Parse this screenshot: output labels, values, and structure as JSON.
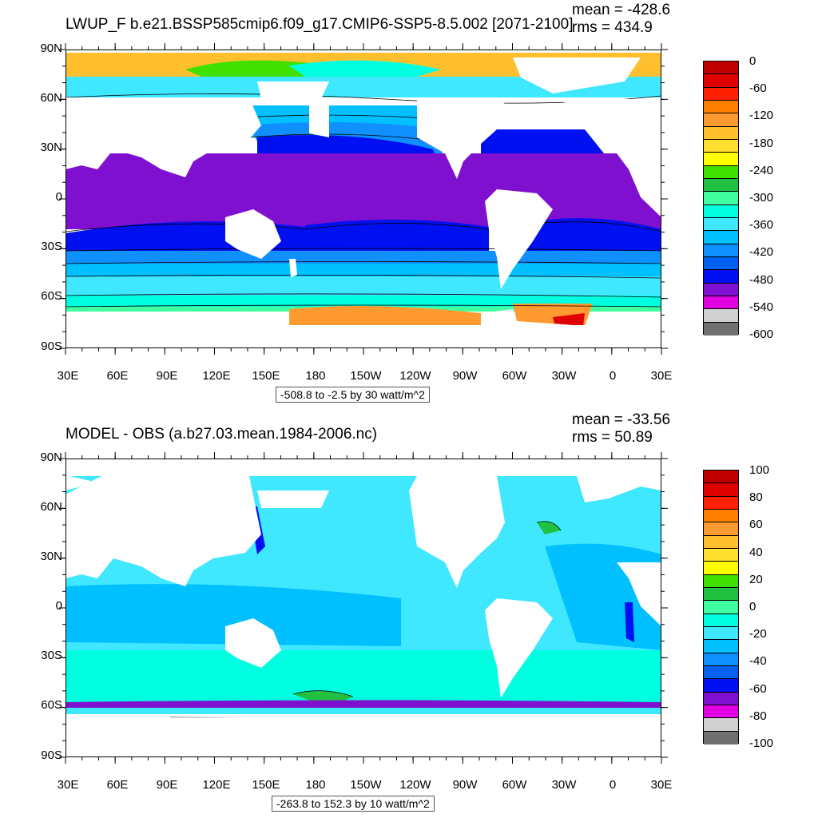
{
  "panels": [
    {
      "title": "LWUP_F b.e21.BSSP585cmip6.f09_g17.CMIP6-SSP5-8.5.002 [2071-2100]",
      "mean": "mean = -428.6",
      "rms": "rms = 434.9",
      "info": "-508.8 to -2.5 by 30 watt/m^2",
      "colorbar_labels": [
        "0",
        "-60",
        "-120",
        "-180",
        "-240",
        "-300",
        "-360",
        "-420",
        "-480",
        "-540",
        "-600"
      ],
      "colorbar_colors": [
        "#C00000",
        "#E00000",
        "#FF2000",
        "#FF8000",
        "#FF9A30",
        "#FFC030",
        "#FFE030",
        "#FFFF00",
        "#40E000",
        "#20C040",
        "#40FFA0",
        "#00FFE0",
        "#40E8FF",
        "#00C0FF",
        "#1090FF",
        "#0060F0",
        "#0010F0",
        "#8010D0",
        "#E000E0",
        "#D0D0D0",
        "#707070"
      ]
    },
    {
      "title": "MODEL - OBS (a.b27.03.mean.1984-2006.nc)",
      "mean": "mean = -33.56",
      "rms": "rms = 50.89",
      "info": "-263.8 to 152.3 by 10 watt/m^2",
      "colorbar_labels": [
        "100",
        "80",
        "60",
        "40",
        "20",
        "0",
        "-20",
        "-40",
        "-60",
        "-80",
        "-100"
      ],
      "colorbar_colors": [
        "#C00000",
        "#E00000",
        "#FF2000",
        "#FF8000",
        "#FF9A30",
        "#FFC030",
        "#FFE030",
        "#FFFF00",
        "#40E000",
        "#20C040",
        "#40FFA0",
        "#00FFE0",
        "#40E8FF",
        "#00C0FF",
        "#1090FF",
        "#0060F0",
        "#0010F0",
        "#8010D0",
        "#E000E0",
        "#D0D0D0",
        "#707070"
      ]
    }
  ],
  "axes": {
    "lat_labels": [
      "90N",
      "60N",
      "30N",
      "0",
      "30S",
      "60S",
      "90S"
    ],
    "lon_labels": [
      "30E",
      "60E",
      "90E",
      "120E",
      "150E",
      "180",
      "150W",
      "120W",
      "90W",
      "60W",
      "30W",
      "0",
      "30E"
    ]
  },
  "colors": {
    "land": "#FFFFFF",
    "frame": "#000000"
  }
}
